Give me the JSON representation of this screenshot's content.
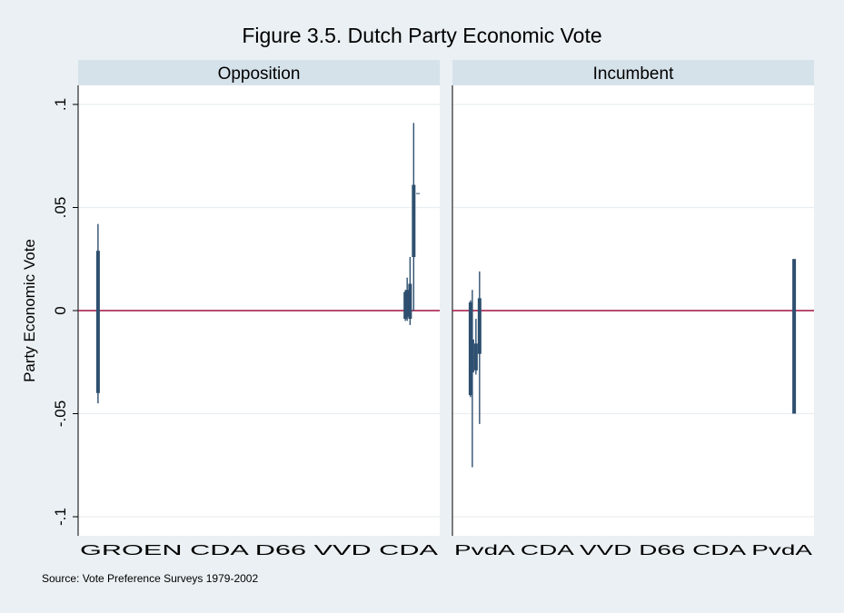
{
  "title": "Figure 3.5. Dutch Party Economic Vote",
  "source": "Source: Vote Preference Surveys 1979-2002",
  "colors": {
    "ci": "#2e4f6f",
    "zero_line": "#a01040",
    "panel_header": "#d6e2ea",
    "background": "#eaf0f3"
  },
  "chart_data": {
    "type": "range",
    "ylabel": "Party Economic Vote",
    "ylim": [
      -0.1,
      0.1
    ],
    "yticks": [
      -0.1,
      -0.05,
      0,
      0.05,
      0.1
    ],
    "ytick_labels": [
      "-.1",
      "-.05",
      "0",
      ".05",
      ".1"
    ],
    "reference_line": 0,
    "panels": [
      {
        "name": "Opposition",
        "x_tick_text": "GROEN CDA D66 VVD CDA",
        "intervals": [
          {
            "x": 0.055,
            "low": -0.045,
            "high": 0.042,
            "inner_low": -0.04,
            "inner_high": 0.029
          },
          {
            "x": 0.905,
            "low": -0.005,
            "high": 0.01,
            "inner_low": -0.004,
            "inner_high": 0.009
          },
          {
            "x": 0.91,
            "low": -0.005,
            "high": 0.016,
            "inner_low": -0.003,
            "inner_high": 0.01
          },
          {
            "x": 0.918,
            "low": -0.007,
            "high": 0.026,
            "inner_low": -0.004,
            "inner_high": 0.013
          },
          {
            "x": 0.928,
            "low": 0.0,
            "high": 0.091,
            "inner_low": 0.026,
            "inner_high": 0.061
          },
          {
            "x": 0.94,
            "low": 0.057,
            "high": 0.057,
            "inner_low": 0.057,
            "inner_high": 0.057
          }
        ]
      },
      {
        "name": "Incumbent",
        "x_tick_text": "PvdA CDA VVD D66 CDA PvdA",
        "intervals": [
          {
            "x": 0.05,
            "low": -0.042,
            "high": 0.005,
            "inner_low": -0.041,
            "inner_high": 0.004
          },
          {
            "x": 0.055,
            "low": -0.076,
            "high": 0.01,
            "inner_low": -0.03,
            "inner_high": -0.014
          },
          {
            "x": 0.065,
            "low": -0.031,
            "high": -0.004,
            "inner_low": -0.029,
            "inner_high": -0.016
          },
          {
            "x": 0.075,
            "low": -0.055,
            "high": 0.019,
            "inner_low": -0.021,
            "inner_high": 0.006
          },
          {
            "x": 0.945,
            "low": -0.05,
            "high": 0.025,
            "inner_low": -0.05,
            "inner_high": 0.025
          }
        ]
      }
    ]
  }
}
